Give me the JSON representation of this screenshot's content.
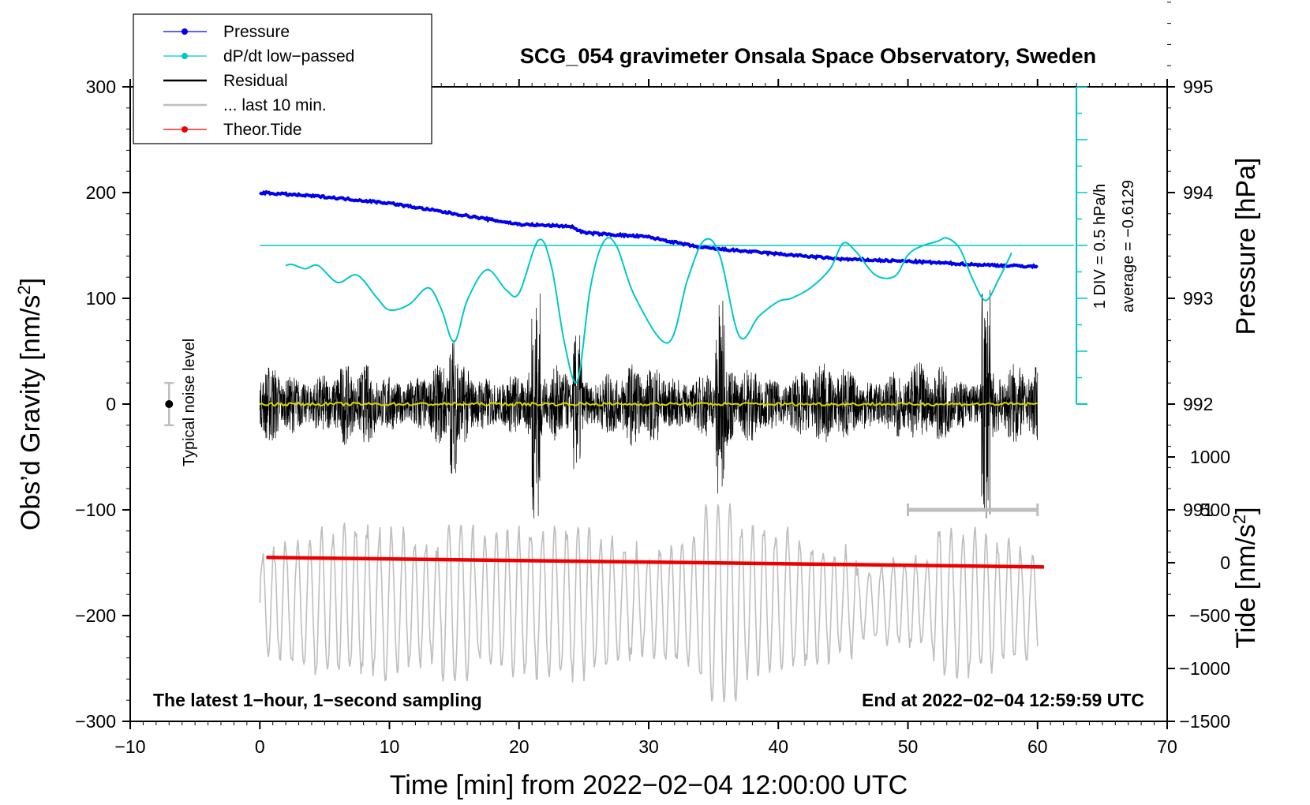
{
  "chart_data": {
    "type": "line",
    "title": "SCG_054 gravimeter Onsala Space Observatory, Sweden",
    "xlabel": "Time [min] from 2022−02−04 12:00:00 UTC",
    "ylabel_left_main": "Obs’d Gravity [nm/s",
    "ylabel_left_sup": "2",
    "ylabel_left_end": "]",
    "ylabel_right_top": "Pressure [hPa]",
    "ylabel_right_bottom_main": "Tide [nm/s",
    "ylabel_right_bottom_sup": "2",
    "ylabel_right_bottom_end": "]",
    "xlim": [
      -10,
      70
    ],
    "ylim": [
      -300,
      300
    ],
    "x_ticks": [
      {
        "v": -10,
        "label": "−10"
      },
      {
        "v": 0,
        "label": "0"
      },
      {
        "v": 10,
        "label": "10"
      },
      {
        "v": 20,
        "label": "20"
      },
      {
        "v": 30,
        "label": "30"
      },
      {
        "v": 40,
        "label": "40"
      },
      {
        "v": 50,
        "label": "50"
      },
      {
        "v": 60,
        "label": "60"
      },
      {
        "v": 70,
        "label": "70"
      }
    ],
    "y_ticks_left": [
      {
        "v": 300,
        "label": "300"
      },
      {
        "v": 200,
        "label": "200"
      },
      {
        "v": 100,
        "label": "100"
      },
      {
        "v": 0,
        "label": "0"
      },
      {
        "v": -100,
        "label": "−100"
      },
      {
        "v": -200,
        "label": "−200"
      },
      {
        "v": -300,
        "label": "−300"
      }
    ],
    "pressure_axis": {
      "ticks": [
        {
          "v": 995,
          "label": "995"
        },
        {
          "v": 994,
          "label": "994"
        },
        {
          "v": 993,
          "label": "993"
        },
        {
          "v": 992,
          "label": "992"
        },
        {
          "v": 991,
          "label": "991"
        }
      ],
      "map": {
        "value_at_left_200": 994,
        "hpa_per_100_left": 1
      }
    },
    "tide_axis": {
      "ticks": [
        {
          "v": 1000,
          "label": "1000"
        },
        {
          "v": 500,
          "label": "500"
        },
        {
          "v": 0,
          "label": "0"
        },
        {
          "v": -500,
          "label": "−500"
        },
        {
          "v": -1000,
          "label": "−1000"
        },
        {
          "v": -1500,
          "label": "−1500"
        }
      ],
      "map": {
        "zero_at_left": -150,
        "per_100_left": 1000
      }
    },
    "legend": [
      {
        "label": "Pressure",
        "color": "#0000ee",
        "marker": true
      },
      {
        "label": "dP/dt low−passed",
        "color": "#00c8c8",
        "marker": true
      },
      {
        "label": "Residual",
        "color": "#000000",
        "marker": false
      },
      {
        "label": "... last 10 min.",
        "color": "#bebebe",
        "marker": false
      },
      {
        "label": "Theor.Tide",
        "color": "#ee0000",
        "marker": true
      }
    ],
    "series": [
      {
        "name": "Pressure",
        "color": "#0000ee",
        "units": "hPa",
        "x": [
          0,
          5,
          10,
          15,
          20,
          24,
          25,
          30,
          34,
          40,
          45,
          50,
          55,
          60
        ],
        "values": [
          994.0,
          993.96,
          993.9,
          993.8,
          993.7,
          993.68,
          993.62,
          993.58,
          993.48,
          993.42,
          993.37,
          993.35,
          993.32,
          993.3
        ]
      },
      {
        "name": "dP/dt low−passed",
        "color": "#00c8c8",
        "units": "left-axis",
        "x": [
          2,
          2.5,
          3.5,
          4.5,
          6,
          7.5,
          9,
          10,
          11.5,
          13,
          14,
          15,
          16,
          17.5,
          19,
          20,
          21.5,
          22.5,
          23.5,
          24.5,
          25.5,
          26.5,
          27.5,
          29,
          31.5,
          33,
          34.3,
          35.5,
          37,
          38.5,
          40,
          41,
          42.5,
          44,
          45,
          46,
          47.5,
          49,
          50,
          51,
          52.3,
          53,
          54,
          55,
          56,
          57,
          58
        ],
        "values": [
          131,
          132,
          128,
          131,
          115,
          122,
          101,
          89,
          94,
          110,
          90,
          59,
          98,
          127,
          108,
          105,
          155,
          130,
          58,
          22,
          110,
          153,
          150,
          100,
          58,
          118,
          155,
          140,
          64,
          83,
          97,
          100,
          110,
          128,
          152,
          144,
          122,
          121,
          141,
          149,
          154,
          157,
          147,
          118,
          98,
          118,
          143
        ]
      },
      {
        "name": "Residual",
        "color": "#000000",
        "units": "left-axis",
        "x_range": [
          0,
          60
        ],
        "amplitude_typical": 40,
        "max": 110,
        "min": -108
      },
      {
        "name": "Residual mean",
        "color": "#d4d400",
        "units": "left-axis",
        "x_range": [
          0,
          60
        ],
        "values": [
          0
        ]
      },
      {
        "name": "... last 10 min.",
        "color": "#bebebe",
        "units": "left-axis",
        "x_range": [
          0,
          60
        ],
        "center": -188,
        "max": -85,
        "min": -283
      },
      {
        "name": "Theor.Tide",
        "color": "#ee0000",
        "units": "left-axis",
        "x": [
          0.5,
          60.5
        ],
        "values": [
          -145,
          -154
        ]
      }
    ],
    "reference_line": {
      "y": 150,
      "x_range": [
        0,
        62.8
      ],
      "color": "#00c8c8"
    },
    "dpdt_scale": {
      "label1": "1 DIV = 0.5 hPa/h",
      "label2": "average = −0.6129",
      "x": 63,
      "y_top": 300,
      "y_bottom": 0
    },
    "noise_level": {
      "label": "Typical noise level",
      "x": -7,
      "y": 0,
      "half_range": 20
    },
    "last_10min_bar": {
      "x": [
        50,
        60
      ],
      "y": -100
    },
    "notes": {
      "left": "The latest 1−hour, 1−second sampling",
      "right": "End at 2022−02−04 12:59:59 UTC"
    }
  }
}
